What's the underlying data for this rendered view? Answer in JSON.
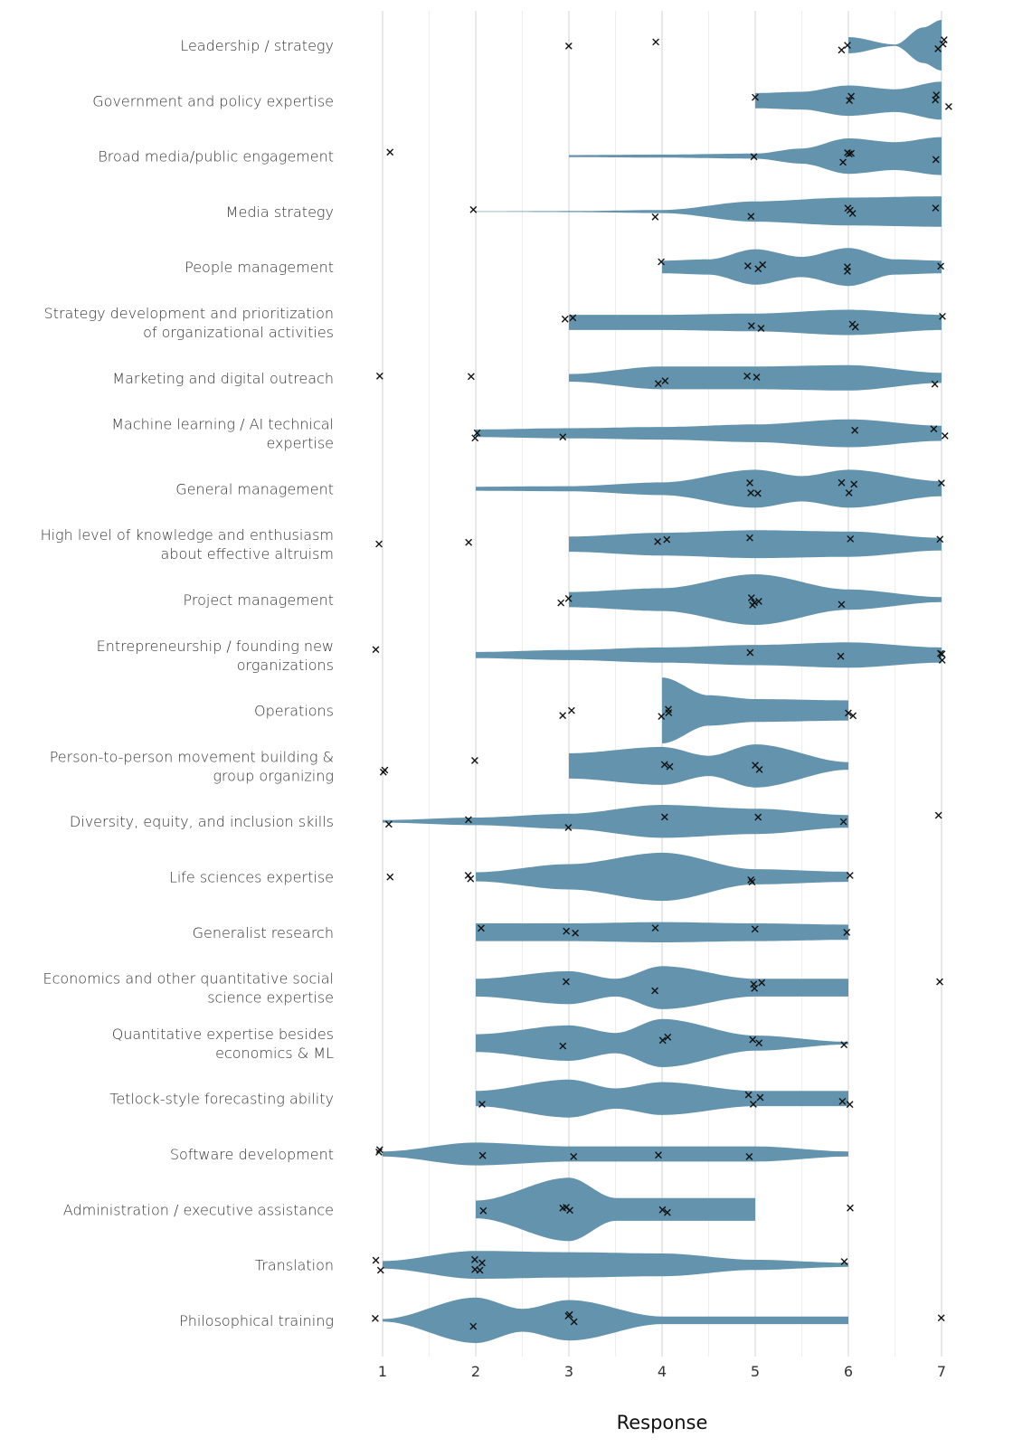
{
  "chart_data": {
    "type": "violin",
    "title": "",
    "xlabel": "Response",
    "ylabel": "",
    "xlim": [
      1,
      7
    ],
    "x_ticks": [
      "1",
      "2",
      "3",
      "4",
      "5",
      "6",
      "7"
    ],
    "grid": "vertical, major at integers and minor at half-steps",
    "violin_color": "#6393ad",
    "point_marker": "x",
    "point_color": "#111111",
    "categories": [
      {
        "label": [
          "Leadership / strategy"
        ],
        "points": [
          3,
          4,
          6,
          6,
          7,
          7,
          7
        ],
        "violin": [
          [
            6,
            0.32
          ],
          [
            6.5,
            0.03
          ],
          [
            6.8,
            0.7
          ],
          [
            7,
            1.0
          ]
        ]
      },
      {
        "label": [
          "Government and policy expertise"
        ],
        "points": [
          5,
          6,
          6,
          7,
          7,
          7
        ],
        "violin": [
          [
            5,
            0.3
          ],
          [
            5.5,
            0.35
          ],
          [
            6,
            0.6
          ],
          [
            6.5,
            0.45
          ],
          [
            7,
            0.75
          ]
        ]
      },
      {
        "label": [
          "Broad media/public engagement"
        ],
        "points": [
          1,
          5,
          6,
          6,
          6,
          6,
          7
        ],
        "violin": [
          [
            3,
            0.04
          ],
          [
            4,
            0.06
          ],
          [
            5,
            0.1
          ],
          [
            5.5,
            0.3
          ],
          [
            6,
            0.7
          ],
          [
            6.5,
            0.55
          ],
          [
            7,
            0.75
          ]
        ]
      },
      {
        "label": [
          "Media strategy"
        ],
        "points": [
          2,
          4,
          5,
          6,
          6,
          6,
          7
        ],
        "violin": [
          [
            2,
            0.01
          ],
          [
            3,
            0.02
          ],
          [
            4,
            0.06
          ],
          [
            5,
            0.4
          ],
          [
            6,
            0.55
          ],
          [
            7,
            0.6
          ]
        ]
      },
      {
        "label": [
          "People management"
        ],
        "points": [
          4,
          5,
          5,
          5,
          6,
          6,
          7
        ],
        "violin": [
          [
            4,
            0.25
          ],
          [
            4.5,
            0.3
          ],
          [
            5,
            0.7
          ],
          [
            5.5,
            0.4
          ],
          [
            6,
            0.75
          ],
          [
            6.5,
            0.3
          ],
          [
            7,
            0.25
          ]
        ]
      },
      {
        "label": [
          "Strategy development and prioritization",
          "of organizational activities"
        ],
        "points": [
          3,
          3,
          5,
          5,
          6,
          6,
          7
        ],
        "violin": [
          [
            3,
            0.3
          ],
          [
            4,
            0.3
          ],
          [
            5,
            0.35
          ],
          [
            6,
            0.5
          ],
          [
            7,
            0.3
          ]
        ]
      },
      {
        "label": [
          "Marketing and digital outreach"
        ],
        "points": [
          1,
          2,
          4,
          4,
          5,
          5,
          7
        ],
        "violin": [
          [
            3,
            0.15
          ],
          [
            4,
            0.45
          ],
          [
            5,
            0.45
          ],
          [
            6,
            0.5
          ],
          [
            7,
            0.2
          ]
        ]
      },
      {
        "label": [
          "Machine learning / AI technical",
          "expertise"
        ],
        "points": [
          2,
          2,
          3,
          6,
          7,
          7
        ],
        "violin": [
          [
            2,
            0.15
          ],
          [
            3,
            0.2
          ],
          [
            4,
            0.25
          ],
          [
            5,
            0.35
          ],
          [
            6,
            0.55
          ],
          [
            7,
            0.3
          ]
        ]
      },
      {
        "label": [
          "General management"
        ],
        "points": [
          5,
          5,
          5,
          6,
          6,
          6,
          7
        ],
        "violin": [
          [
            2,
            0.08
          ],
          [
            3,
            0.1
          ],
          [
            4,
            0.25
          ],
          [
            5,
            0.75
          ],
          [
            5.5,
            0.5
          ],
          [
            6,
            0.75
          ],
          [
            7,
            0.3
          ]
        ]
      },
      {
        "label": [
          "High level of knowledge and enthusiasm",
          "about effective altruism"
        ],
        "points": [
          1,
          2,
          4,
          4,
          5,
          6,
          7
        ],
        "violin": [
          [
            3,
            0.3
          ],
          [
            4,
            0.45
          ],
          [
            5,
            0.55
          ],
          [
            6,
            0.5
          ],
          [
            7,
            0.25
          ]
        ]
      },
      {
        "label": [
          "Project management"
        ],
        "points": [
          3,
          3,
          5,
          5,
          5,
          5,
          6
        ],
        "violin": [
          [
            3,
            0.3
          ],
          [
            4,
            0.45
          ],
          [
            5,
            1.0
          ],
          [
            6,
            0.4
          ],
          [
            7,
            0.1
          ]
        ]
      },
      {
        "label": [
          "Entrepreneurship / founding new",
          "organizations"
        ],
        "points": [
          1,
          5,
          6,
          7,
          7,
          7
        ],
        "violin": [
          [
            2,
            0.12
          ],
          [
            3,
            0.2
          ],
          [
            4,
            0.3
          ],
          [
            5,
            0.4
          ],
          [
            6,
            0.5
          ],
          [
            7,
            0.3
          ]
        ]
      },
      {
        "label": [
          "Operations"
        ],
        "points": [
          3,
          3,
          4,
          4,
          4,
          6,
          6
        ],
        "violin": [
          [
            4,
            1.3
          ],
          [
            4.5,
            0.6
          ],
          [
            5,
            0.45
          ],
          [
            6,
            0.4
          ]
        ]
      },
      {
        "label": [
          "Person-to-person movement building &",
          "group organizing"
        ],
        "points": [
          1,
          1,
          2,
          4,
          4,
          5,
          5
        ],
        "violin": [
          [
            3,
            0.5
          ],
          [
            4,
            0.75
          ],
          [
            4.5,
            0.4
          ],
          [
            5,
            0.85
          ],
          [
            6,
            0.15
          ]
        ]
      },
      {
        "label": [
          "Diversity, equity, and inclusion skills"
        ],
        "points": [
          1,
          2,
          3,
          4,
          5,
          6,
          7
        ],
        "violin": [
          [
            1,
            0.05
          ],
          [
            2,
            0.15
          ],
          [
            3,
            0.3
          ],
          [
            4,
            0.65
          ],
          [
            5,
            0.5
          ],
          [
            6,
            0.25
          ]
        ]
      },
      {
        "label": [
          "Life sciences expertise"
        ],
        "points": [
          1,
          2,
          2,
          5,
          5,
          6
        ],
        "violin": [
          [
            2,
            0.18
          ],
          [
            3,
            0.5
          ],
          [
            4,
            0.95
          ],
          [
            5,
            0.3
          ],
          [
            6,
            0.2
          ]
        ]
      },
      {
        "label": [
          "Generalist research"
        ],
        "points": [
          2,
          3,
          3,
          4,
          5,
          6
        ],
        "violin": [
          [
            2,
            0.35
          ],
          [
            3,
            0.35
          ],
          [
            4,
            0.4
          ],
          [
            5,
            0.35
          ],
          [
            6,
            0.3
          ]
        ]
      },
      {
        "label": [
          "Economics and other quantitative social",
          "science expertise"
        ],
        "points": [
          3,
          4,
          5,
          5,
          5,
          7
        ],
        "violin": [
          [
            2,
            0.35
          ],
          [
            3,
            0.65
          ],
          [
            3.5,
            0.35
          ],
          [
            4,
            0.85
          ],
          [
            5,
            0.35
          ],
          [
            6,
            0.35
          ]
        ]
      },
      {
        "label": [
          "Quantitative expertise besides",
          "economics & ML"
        ],
        "points": [
          3,
          4,
          4,
          5,
          5,
          6
        ],
        "violin": [
          [
            2,
            0.35
          ],
          [
            3,
            0.7
          ],
          [
            3.5,
            0.4
          ],
          [
            4,
            0.95
          ],
          [
            5,
            0.3
          ],
          [
            6,
            0.05
          ]
        ]
      },
      {
        "label": [
          "Tetlock-style forecasting ability"
        ],
        "points": [
          2,
          5,
          5,
          5,
          6,
          6
        ],
        "violin": [
          [
            2,
            0.3
          ],
          [
            3,
            0.75
          ],
          [
            3.5,
            0.4
          ],
          [
            4,
            0.65
          ],
          [
            5,
            0.3
          ],
          [
            6,
            0.3
          ]
        ]
      },
      {
        "label": [
          "Software development"
        ],
        "points": [
          1,
          1,
          2,
          3,
          4,
          5
        ],
        "violin": [
          [
            1,
            0.1
          ],
          [
            2,
            0.45
          ],
          [
            3,
            0.3
          ],
          [
            4,
            0.3
          ],
          [
            5,
            0.3
          ],
          [
            6,
            0.1
          ]
        ]
      },
      {
        "label": [
          "Administration / executive assistance"
        ],
        "points": [
          2,
          3,
          3,
          3,
          4,
          4,
          6
        ],
        "violin": [
          [
            2,
            0.35
          ],
          [
            3,
            1.25
          ],
          [
            3.5,
            0.45
          ],
          [
            4,
            0.45
          ],
          [
            5,
            0.45
          ]
        ]
      },
      {
        "label": [
          "Translation"
        ],
        "points": [
          1,
          1,
          2,
          2,
          2,
          2,
          6
        ],
        "violin": [
          [
            1,
            0.15
          ],
          [
            2,
            0.55
          ],
          [
            3,
            0.5
          ],
          [
            4,
            0.45
          ],
          [
            5,
            0.2
          ],
          [
            6,
            0.08
          ]
        ]
      },
      {
        "label": [
          "Philosophical training"
        ],
        "points": [
          1,
          2,
          3,
          3,
          3,
          7
        ],
        "violin": [
          [
            1,
            0.05
          ],
          [
            2,
            0.9
          ],
          [
            2.5,
            0.45
          ],
          [
            3,
            0.8
          ],
          [
            4,
            0.15
          ],
          [
            6,
            0.15
          ]
        ]
      }
    ]
  }
}
